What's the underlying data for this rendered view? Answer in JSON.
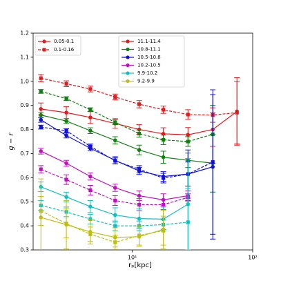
{
  "chart_data": {
    "type": "line",
    "xlabel": "rₚ[kpc]",
    "ylabel": "g − r",
    "xscale": "log",
    "xlim": [
      1.5,
      100
    ],
    "xticks": [
      {
        "value": 10,
        "label": "10¹"
      },
      {
        "value": 100,
        "label": "10²"
      }
    ],
    "ylim": [
      0.3,
      1.2
    ],
    "yticks": [
      0.3,
      0.4,
      0.5,
      0.6,
      0.7,
      0.8,
      0.9,
      {
        "value": 1,
        "label": "1.0"
      },
      1.1,
      1.2
    ],
    "style_legend": [
      "0.05-0.1",
      "0.1-0.16"
    ],
    "style_legend_color": "#e41a1c",
    "x": [
      1.74,
      2.83,
      4.48,
      7.2,
      11.4,
      18.1,
      29,
      46.6,
      74
    ],
    "series": [
      {
        "name": "11.1-11.4",
        "color": "#e41a1c",
        "values": [
          0.885,
          0.87,
          0.85,
          0.825,
          0.8,
          0.782,
          0.778,
          0.8,
          0.875
        ],
        "errors": [
          0.025,
          0.025,
          0.025,
          0.02,
          0.02,
          0.025,
          0.03,
          0.07,
          0.14
        ],
        "dashed_values": [
          1.013,
          0.99,
          0.968,
          0.935,
          0.905,
          0.882,
          0.862,
          0.86,
          0.87
        ],
        "dashed_errors": [
          0.015,
          0.012,
          0.012,
          0.012,
          0.015,
          0.015,
          0.02,
          0.03,
          0.13
        ]
      },
      {
        "name": "10.8-11.1",
        "color": "#108010",
        "values": [
          0.86,
          0.835,
          0.795,
          0.755,
          0.715,
          0.685,
          0.672,
          0.66,
          null
        ],
        "errors": [
          0.01,
          0.01,
          0.012,
          0.015,
          0.02,
          0.025,
          0.03,
          0.12,
          null
        ],
        "dashed_values": [
          0.958,
          0.928,
          0.882,
          0.83,
          0.783,
          0.757,
          0.75,
          0.78,
          null
        ],
        "dashed_errors": [
          0.008,
          0.008,
          0.008,
          0.01,
          0.015,
          0.02,
          0.02,
          0.12,
          null
        ]
      },
      {
        "name": "10.5-10.8",
        "color": "#1010e0",
        "values": [
          0.84,
          0.775,
          0.722,
          0.672,
          0.628,
          0.605,
          0.615,
          0.645,
          null
        ],
        "errors": [
          0.01,
          0.01,
          0.01,
          0.015,
          0.015,
          0.02,
          0.1,
          0.3,
          null
        ],
        "dashed_values": [
          0.81,
          0.795,
          0.73,
          0.67,
          0.635,
          0.598,
          0.615,
          0.665,
          null
        ],
        "dashed_errors": [
          0.008,
          0.008,
          0.01,
          0.012,
          0.015,
          0.02,
          0.05,
          0.3,
          null
        ]
      },
      {
        "name": "10.2-10.5",
        "color": "#bf10bf",
        "values": [
          0.71,
          0.66,
          0.605,
          0.558,
          0.525,
          0.508,
          0.525,
          null,
          null
        ],
        "errors": [
          0.012,
          0.012,
          0.015,
          0.015,
          0.02,
          0.025,
          0.02,
          null,
          null
        ],
        "dashed_values": [
          0.635,
          0.592,
          0.548,
          0.505,
          0.488,
          0.488,
          0.518,
          null,
          null
        ],
        "dashed_errors": [
          0.015,
          0.02,
          0.02,
          0.02,
          0.025,
          0.02,
          0.015,
          null,
          null
        ]
      },
      {
        "name": "9.9-10.2",
        "color": "#10bfbf",
        "values": [
          0.562,
          0.52,
          0.48,
          0.445,
          0.43,
          0.428,
          0.49,
          null,
          null
        ],
        "errors": [
          0.02,
          0.02,
          0.025,
          0.03,
          0.04,
          0.05,
          0.19,
          null,
          null
        ],
        "dashed_values": [
          0.485,
          0.458,
          0.428,
          0.4,
          0.4,
          0.405,
          0.415,
          null,
          null
        ],
        "dashed_errors": [
          0.02,
          0.02,
          0.02,
          0.02,
          0.02,
          0.02,
          0.14,
          null,
          null
        ]
      },
      {
        "name": "9.2-9.9",
        "color": "#bfbf10",
        "values": [
          0.435,
          0.405,
          0.375,
          0.352,
          0.355,
          0.385,
          null,
          null,
          null
        ],
        "errors": [
          0.16,
          0.1,
          0.05,
          0.04,
          0.04,
          0.08,
          null,
          null,
          null
        ],
        "dashed_values": [
          0.462,
          0.41,
          0.365,
          0.332,
          0.36,
          0.38,
          null,
          null,
          null
        ],
        "dashed_errors": [
          0.06,
          0.06,
          0.03,
          0.03,
          0.04,
          0.06,
          null,
          null,
          null
        ]
      }
    ]
  }
}
